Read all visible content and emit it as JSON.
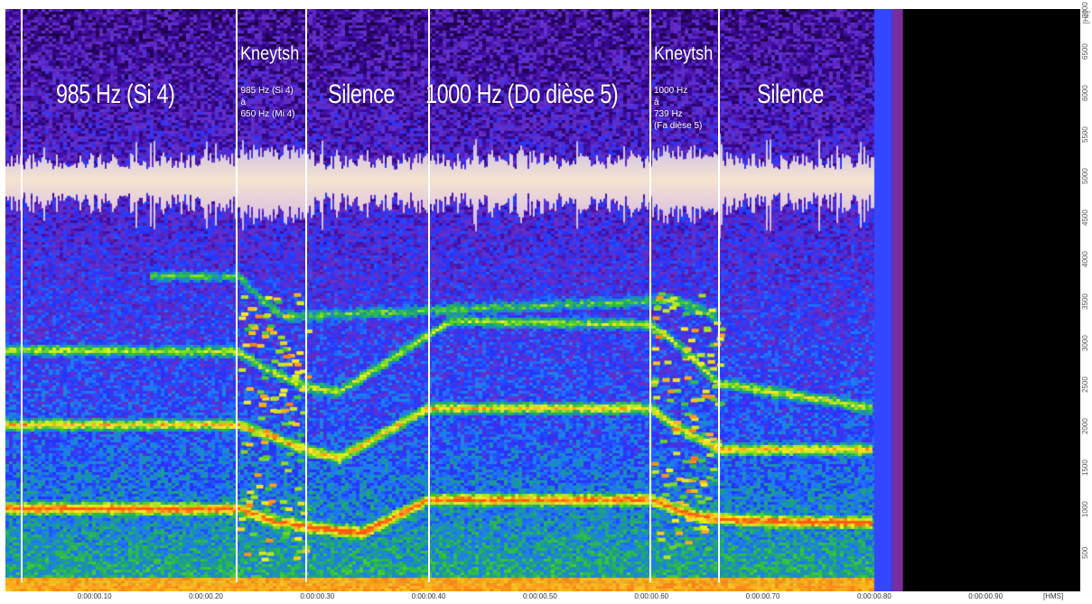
{
  "chart_data": {
    "type": "heatmap",
    "title": "",
    "xlabel": "[HMS] ",
    "ylabel": "[Hz]",
    "x_range": [
      0.02,
      0.985
    ],
    "y_range": [
      0,
      7000
    ],
    "data_end_time": 0.8,
    "x_ticks": [
      "0:00:00.10",
      "0:00:00.20",
      "0:00:00.30",
      "0:00:00.40",
      "0:00:00.50",
      "0:00:00.60",
      "0:00:00.70",
      "0:00:00.80",
      "0:00:00.90"
    ],
    "x_tick_values": [
      0.1,
      0.2,
      0.3,
      0.4,
      0.5,
      0.6,
      0.7,
      0.8,
      0.9
    ],
    "y_ticks": [
      "500",
      "1000",
      "1500",
      "2000",
      "2500",
      "3000",
      "3500",
      "4000",
      "4500",
      "5000",
      "5500",
      "6000",
      "6500",
      "7000"
    ],
    "y_tick_values": [
      500,
      1000,
      1500,
      2000,
      2500,
      3000,
      3500,
      4000,
      4500,
      5000,
      5500,
      6000,
      6500,
      7000
    ],
    "segment_boundaries": [
      0.035,
      0.228,
      0.29,
      0.4,
      0.599,
      0.661
    ],
    "segments": [
      {
        "label": "985 Hz (Si 4)",
        "start": 0.035,
        "end": 0.228,
        "frequency_hz": 985,
        "style": "big"
      },
      {
        "label": "Kneytsh",
        "details": [
          "985 Hz (Si 4)",
          "à",
          "650 Hz (Mi 4)"
        ],
        "start": 0.228,
        "end": 0.29,
        "style": "glide"
      },
      {
        "label": "Silence",
        "start": 0.29,
        "end": 0.4,
        "style": "big"
      },
      {
        "label": "1000 Hz (Do dièse 5)",
        "start": 0.4,
        "end": 0.599,
        "frequency_hz": 1000,
        "style": "big"
      },
      {
        "label": "Kneytsh",
        "details": [
          "1000 Hz",
          "à",
          "739 Hz",
          "(Fa dièse 5)"
        ],
        "start": 0.599,
        "end": 0.661,
        "style": "glide"
      },
      {
        "label": "Silence",
        "start": 0.661,
        "end": 0.8,
        "style": "big"
      }
    ],
    "harmonic_tracks": [
      {
        "name": "h1",
        "points": [
          [
            0.02,
            1000
          ],
          [
            0.23,
            985
          ],
          [
            0.26,
            850
          ],
          [
            0.29,
            780
          ],
          [
            0.34,
            700
          ],
          [
            0.4,
            1100
          ],
          [
            0.6,
            1100
          ],
          [
            0.64,
            900
          ],
          [
            0.68,
            850
          ],
          [
            0.8,
            820
          ]
        ]
      },
      {
        "name": "h2",
        "points": [
          [
            0.02,
            2000
          ],
          [
            0.23,
            2000
          ],
          [
            0.25,
            1900
          ],
          [
            0.29,
            1700
          ],
          [
            0.32,
            1600
          ],
          [
            0.4,
            2200
          ],
          [
            0.6,
            2200
          ],
          [
            0.62,
            2000
          ],
          [
            0.66,
            1700
          ],
          [
            0.8,
            1700
          ]
        ]
      },
      {
        "name": "h3",
        "points": [
          [
            0.02,
            2900
          ],
          [
            0.23,
            2880
          ],
          [
            0.25,
            2700
          ],
          [
            0.29,
            2450
          ],
          [
            0.32,
            2400
          ],
          [
            0.42,
            3250
          ],
          [
            0.6,
            3200
          ],
          [
            0.63,
            2900
          ],
          [
            0.66,
            2500
          ],
          [
            0.8,
            2200
          ]
        ]
      },
      {
        "name": "h4",
        "points": [
          [
            0.15,
            3800
          ],
          [
            0.23,
            3780
          ],
          [
            0.25,
            3500
          ],
          [
            0.27,
            3300
          ],
          [
            0.62,
            3500
          ],
          [
            0.64,
            3400
          ],
          [
            0.66,
            3300
          ]
        ]
      }
    ],
    "waveform_center_hz": 4950,
    "colormap": [
      "#000000",
      "#1c0040",
      "#3c0aa0",
      "#6a30c8",
      "#2233ff",
      "#1f78ff",
      "#1a9d8a",
      "#33c43a",
      "#9be21e",
      "#f6f028",
      "#ffb21a",
      "#ff5a10"
    ]
  }
}
